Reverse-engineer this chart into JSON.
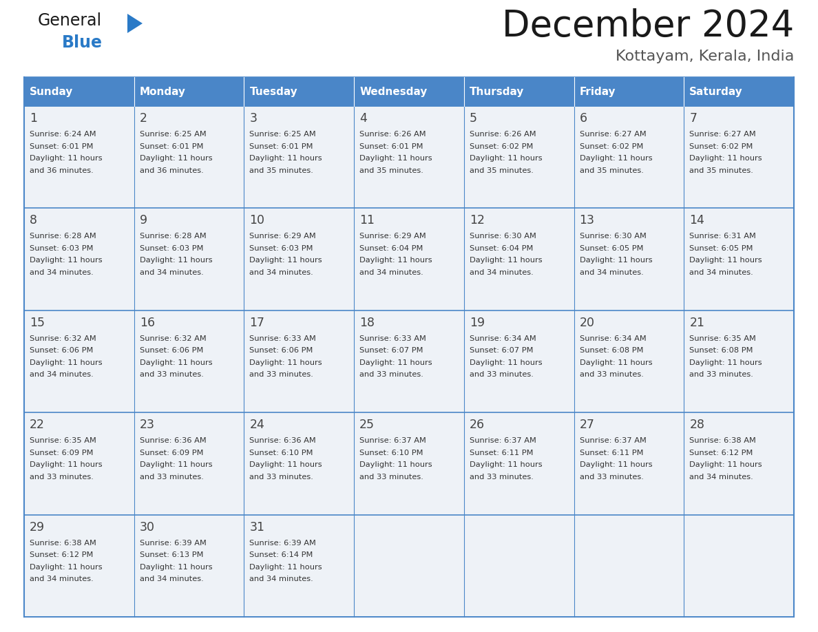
{
  "title": "December 2024",
  "subtitle": "Kottayam, Kerala, India",
  "days_of_week": [
    "Sunday",
    "Monday",
    "Tuesday",
    "Wednesday",
    "Thursday",
    "Friday",
    "Saturday"
  ],
  "header_bg": "#4a86c8",
  "header_text": "#ffffff",
  "row_bg": "#eef2f7",
  "border_color": "#4a86c8",
  "text_color": "#333333",
  "day_num_color": "#444444",
  "calendar_data": [
    [
      {
        "day": 1,
        "sunrise": "6:24 AM",
        "sunset": "6:01 PM",
        "daylight": "11 hours and 36 minutes."
      },
      {
        "day": 2,
        "sunrise": "6:25 AM",
        "sunset": "6:01 PM",
        "daylight": "11 hours and 36 minutes."
      },
      {
        "day": 3,
        "sunrise": "6:25 AM",
        "sunset": "6:01 PM",
        "daylight": "11 hours and 35 minutes."
      },
      {
        "day": 4,
        "sunrise": "6:26 AM",
        "sunset": "6:01 PM",
        "daylight": "11 hours and 35 minutes."
      },
      {
        "day": 5,
        "sunrise": "6:26 AM",
        "sunset": "6:02 PM",
        "daylight": "11 hours and 35 minutes."
      },
      {
        "day": 6,
        "sunrise": "6:27 AM",
        "sunset": "6:02 PM",
        "daylight": "11 hours and 35 minutes."
      },
      {
        "day": 7,
        "sunrise": "6:27 AM",
        "sunset": "6:02 PM",
        "daylight": "11 hours and 35 minutes."
      }
    ],
    [
      {
        "day": 8,
        "sunrise": "6:28 AM",
        "sunset": "6:03 PM",
        "daylight": "11 hours and 34 minutes."
      },
      {
        "day": 9,
        "sunrise": "6:28 AM",
        "sunset": "6:03 PM",
        "daylight": "11 hours and 34 minutes."
      },
      {
        "day": 10,
        "sunrise": "6:29 AM",
        "sunset": "6:03 PM",
        "daylight": "11 hours and 34 minutes."
      },
      {
        "day": 11,
        "sunrise": "6:29 AM",
        "sunset": "6:04 PM",
        "daylight": "11 hours and 34 minutes."
      },
      {
        "day": 12,
        "sunrise": "6:30 AM",
        "sunset": "6:04 PM",
        "daylight": "11 hours and 34 minutes."
      },
      {
        "day": 13,
        "sunrise": "6:30 AM",
        "sunset": "6:05 PM",
        "daylight": "11 hours and 34 minutes."
      },
      {
        "day": 14,
        "sunrise": "6:31 AM",
        "sunset": "6:05 PM",
        "daylight": "11 hours and 34 minutes."
      }
    ],
    [
      {
        "day": 15,
        "sunrise": "6:32 AM",
        "sunset": "6:06 PM",
        "daylight": "11 hours and 34 minutes."
      },
      {
        "day": 16,
        "sunrise": "6:32 AM",
        "sunset": "6:06 PM",
        "daylight": "11 hours and 33 minutes."
      },
      {
        "day": 17,
        "sunrise": "6:33 AM",
        "sunset": "6:06 PM",
        "daylight": "11 hours and 33 minutes."
      },
      {
        "day": 18,
        "sunrise": "6:33 AM",
        "sunset": "6:07 PM",
        "daylight": "11 hours and 33 minutes."
      },
      {
        "day": 19,
        "sunrise": "6:34 AM",
        "sunset": "6:07 PM",
        "daylight": "11 hours and 33 minutes."
      },
      {
        "day": 20,
        "sunrise": "6:34 AM",
        "sunset": "6:08 PM",
        "daylight": "11 hours and 33 minutes."
      },
      {
        "day": 21,
        "sunrise": "6:35 AM",
        "sunset": "6:08 PM",
        "daylight": "11 hours and 33 minutes."
      }
    ],
    [
      {
        "day": 22,
        "sunrise": "6:35 AM",
        "sunset": "6:09 PM",
        "daylight": "11 hours and 33 minutes."
      },
      {
        "day": 23,
        "sunrise": "6:36 AM",
        "sunset": "6:09 PM",
        "daylight": "11 hours and 33 minutes."
      },
      {
        "day": 24,
        "sunrise": "6:36 AM",
        "sunset": "6:10 PM",
        "daylight": "11 hours and 33 minutes."
      },
      {
        "day": 25,
        "sunrise": "6:37 AM",
        "sunset": "6:10 PM",
        "daylight": "11 hours and 33 minutes."
      },
      {
        "day": 26,
        "sunrise": "6:37 AM",
        "sunset": "6:11 PM",
        "daylight": "11 hours and 33 minutes."
      },
      {
        "day": 27,
        "sunrise": "6:37 AM",
        "sunset": "6:11 PM",
        "daylight": "11 hours and 33 minutes."
      },
      {
        "day": 28,
        "sunrise": "6:38 AM",
        "sunset": "6:12 PM",
        "daylight": "11 hours and 34 minutes."
      }
    ],
    [
      {
        "day": 29,
        "sunrise": "6:38 AM",
        "sunset": "6:12 PM",
        "daylight": "11 hours and 34 minutes."
      },
      {
        "day": 30,
        "sunrise": "6:39 AM",
        "sunset": "6:13 PM",
        "daylight": "11 hours and 34 minutes."
      },
      {
        "day": 31,
        "sunrise": "6:39 AM",
        "sunset": "6:14 PM",
        "daylight": "11 hours and 34 minutes."
      },
      null,
      null,
      null,
      null
    ]
  ],
  "logo_text_general": "General",
  "logo_text_blue": "Blue",
  "logo_color_general": "#1a1a1a",
  "logo_color_blue": "#2a7ac7",
  "logo_triangle_color": "#2a7ac7",
  "fig_width": 11.88,
  "fig_height": 9.18,
  "dpi": 100
}
